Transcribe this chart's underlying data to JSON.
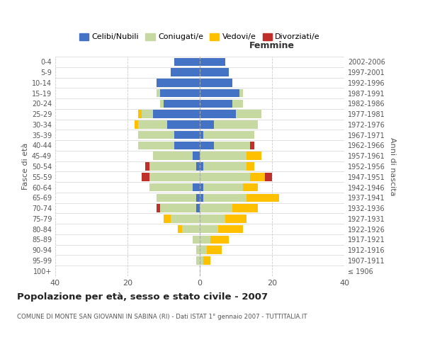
{
  "age_groups": [
    "100+",
    "95-99",
    "90-94",
    "85-89",
    "80-84",
    "75-79",
    "70-74",
    "65-69",
    "60-64",
    "55-59",
    "50-54",
    "45-49",
    "40-44",
    "35-39",
    "30-34",
    "25-29",
    "20-24",
    "15-19",
    "10-14",
    "5-9",
    "0-4"
  ],
  "birth_years": [
    "≤ 1906",
    "1907-1911",
    "1912-1916",
    "1917-1921",
    "1922-1926",
    "1927-1931",
    "1932-1936",
    "1937-1941",
    "1942-1946",
    "1947-1951",
    "1952-1956",
    "1957-1961",
    "1962-1966",
    "1967-1971",
    "1972-1976",
    "1977-1981",
    "1982-1986",
    "1987-1991",
    "1992-1996",
    "1997-2001",
    "2002-2006"
  ],
  "males": {
    "celibi": [
      0,
      0,
      0,
      0,
      0,
      0,
      1,
      1,
      2,
      0,
      1,
      2,
      7,
      7,
      9,
      13,
      10,
      11,
      12,
      8,
      7
    ],
    "coniugati": [
      0,
      1,
      1,
      2,
      5,
      8,
      10,
      11,
      12,
      14,
      13,
      11,
      10,
      10,
      8,
      3,
      1,
      1,
      0,
      0,
      0
    ],
    "vedovi": [
      0,
      0,
      0,
      0,
      1,
      2,
      0,
      0,
      0,
      0,
      0,
      0,
      0,
      0,
      1,
      1,
      0,
      0,
      0,
      0,
      0
    ],
    "divorziati": [
      0,
      0,
      0,
      0,
      0,
      0,
      1,
      0,
      0,
      2,
      1,
      0,
      0,
      0,
      0,
      0,
      0,
      0,
      0,
      0,
      0
    ]
  },
  "females": {
    "nubili": [
      0,
      0,
      0,
      0,
      0,
      0,
      0,
      1,
      1,
      0,
      1,
      0,
      4,
      1,
      4,
      10,
      9,
      11,
      9,
      8,
      7
    ],
    "coniugate": [
      0,
      1,
      2,
      3,
      5,
      7,
      9,
      12,
      11,
      14,
      12,
      13,
      10,
      14,
      12,
      7,
      3,
      1,
      0,
      0,
      0
    ],
    "vedove": [
      0,
      2,
      4,
      5,
      7,
      6,
      7,
      9,
      4,
      4,
      2,
      4,
      0,
      0,
      0,
      0,
      0,
      0,
      0,
      0,
      0
    ],
    "divorziate": [
      0,
      0,
      0,
      0,
      0,
      0,
      0,
      0,
      0,
      2,
      0,
      0,
      1,
      0,
      0,
      0,
      0,
      0,
      0,
      0,
      0
    ]
  },
  "color_celibi": "#4472c4",
  "color_coniugati": "#c5d9a0",
  "color_vedovi": "#ffc000",
  "color_divorziati": "#c0302a",
  "title": "Popolazione per età, sesso e stato civile - 2007",
  "subtitle": "COMUNE DI MONTE SAN GIOVANNI IN SABINA (RI) - Dati ISTAT 1° gennaio 2007 - TUTTITALIA.IT",
  "xlabel_right": "Femmine",
  "ylabel_left": "Fasce di età",
  "ylabel_right": "Anni di nascita",
  "xlim": 40,
  "bg_color": "#ffffff",
  "grid_color": "#cccccc"
}
